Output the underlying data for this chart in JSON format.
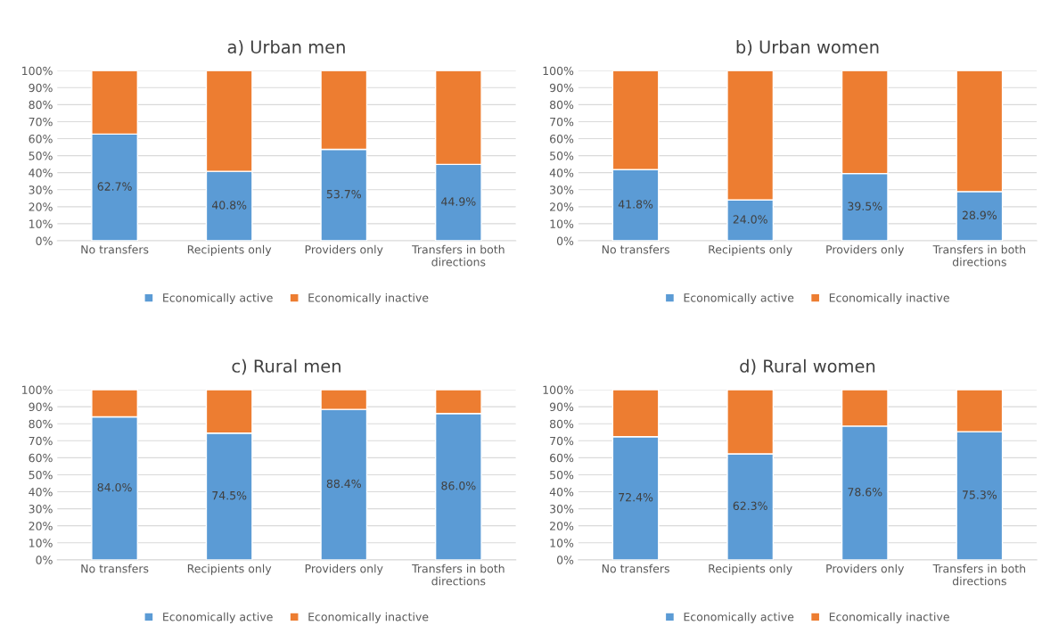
{
  "chart_data": [
    {
      "type": "bar",
      "title": "a) Urban men",
      "stacked": true,
      "categories": [
        "No transfers",
        "Recipients only",
        "Providers only",
        "Transfers in both directions"
      ],
      "ylim": [
        0,
        100
      ],
      "yticks": [
        {
          "value": 0,
          "label": "0%"
        },
        {
          "value": 10,
          "label": "10%"
        },
        {
          "value": 20,
          "label": "20%"
        },
        {
          "value": 30,
          "label": "30%"
        },
        {
          "value": 40,
          "label": "40%"
        },
        {
          "value": 50,
          "label": "50%"
        },
        {
          "value": 60,
          "label": "60%"
        },
        {
          "value": 70,
          "label": "70%"
        },
        {
          "value": 80,
          "label": "80%"
        },
        {
          "value": 90,
          "label": "90%"
        },
        {
          "value": 100,
          "label": "100%"
        }
      ],
      "grid": "y",
      "legend": "bottom",
      "series": [
        {
          "name": "Economically active",
          "color": "#5b9bd5",
          "values": [
            62.7,
            40.8,
            53.7,
            44.9
          ],
          "value_labels": [
            "62.7%",
            "40.8%",
            "53.7%",
            "44.9%"
          ]
        },
        {
          "name": "Economically inactive",
          "color": "#ed7d31",
          "values": [
            37.3,
            59.2,
            46.3,
            55.1
          ]
        }
      ]
    },
    {
      "type": "bar",
      "title": "b) Urban women",
      "stacked": true,
      "categories": [
        "No transfers",
        "Recipients only",
        "Providers only",
        "Transfers in both directions"
      ],
      "ylim": [
        0,
        100
      ],
      "yticks": [
        {
          "value": 0,
          "label": "0%"
        },
        {
          "value": 10,
          "label": "10%"
        },
        {
          "value": 20,
          "label": "20%"
        },
        {
          "value": 30,
          "label": "30%"
        },
        {
          "value": 40,
          "label": "40%"
        },
        {
          "value": 50,
          "label": "50%"
        },
        {
          "value": 60,
          "label": "60%"
        },
        {
          "value": 70,
          "label": "70%"
        },
        {
          "value": 80,
          "label": "80%"
        },
        {
          "value": 90,
          "label": "90%"
        },
        {
          "value": 100,
          "label": "100%"
        }
      ],
      "grid": "y",
      "legend": "bottom",
      "series": [
        {
          "name": "Economically active",
          "color": "#5b9bd5",
          "values": [
            41.8,
            24.0,
            39.5,
            28.9
          ],
          "value_labels": [
            "41.8%",
            "24.0%",
            "39.5%",
            "28.9%"
          ]
        },
        {
          "name": "Economically inactive",
          "color": "#ed7d31",
          "values": [
            58.2,
            76.0,
            60.5,
            71.1
          ]
        }
      ]
    },
    {
      "type": "bar",
      "title": "c) Rural men",
      "stacked": true,
      "categories": [
        "No transfers",
        "Recipients only",
        "Providers only",
        "Transfers in both directions"
      ],
      "ylim": [
        0,
        100
      ],
      "yticks": [
        {
          "value": 0,
          "label": "0%"
        },
        {
          "value": 10,
          "label": "10%"
        },
        {
          "value": 20,
          "label": "20%"
        },
        {
          "value": 30,
          "label": "30%"
        },
        {
          "value": 40,
          "label": "40%"
        },
        {
          "value": 50,
          "label": "50%"
        },
        {
          "value": 60,
          "label": "60%"
        },
        {
          "value": 70,
          "label": "70%"
        },
        {
          "value": 80,
          "label": "80%"
        },
        {
          "value": 90,
          "label": "90%"
        },
        {
          "value": 100,
          "label": "100%"
        }
      ],
      "grid": "y",
      "legend": "bottom",
      "series": [
        {
          "name": "Economically active",
          "color": "#5b9bd5",
          "values": [
            84.0,
            74.5,
            88.4,
            86.0
          ],
          "value_labels": [
            "84.0%",
            "74.5%",
            "88.4%",
            "86.0%"
          ]
        },
        {
          "name": "Economically inactive",
          "color": "#ed7d31",
          "values": [
            16.0,
            25.5,
            11.6,
            14.0
          ]
        }
      ]
    },
    {
      "type": "bar",
      "title": "d) Rural women",
      "stacked": true,
      "categories": [
        "No transfers",
        "Recipients only",
        "Providers only",
        "Transfers in both directions"
      ],
      "ylim": [
        0,
        100
      ],
      "yticks": [
        {
          "value": 0,
          "label": "0%"
        },
        {
          "value": 10,
          "label": "10%"
        },
        {
          "value": 20,
          "label": "20%"
        },
        {
          "value": 30,
          "label": "30%"
        },
        {
          "value": 40,
          "label": "40%"
        },
        {
          "value": 50,
          "label": "50%"
        },
        {
          "value": 60,
          "label": "60%"
        },
        {
          "value": 70,
          "label": "70%"
        },
        {
          "value": 80,
          "label": "80%"
        },
        {
          "value": 90,
          "label": "90%"
        },
        {
          "value": 100,
          "label": "100%"
        }
      ],
      "grid": "y",
      "legend": "bottom",
      "series": [
        {
          "name": "Economically active",
          "color": "#5b9bd5",
          "values": [
            72.4,
            62.3,
            78.6,
            75.3
          ],
          "value_labels": [
            "72.4%",
            "62.3%",
            "78.6%",
            "75.3%"
          ]
        },
        {
          "name": "Economically inactive",
          "color": "#ed7d31",
          "values": [
            27.6,
            37.7,
            21.4,
            24.7
          ]
        }
      ]
    }
  ]
}
